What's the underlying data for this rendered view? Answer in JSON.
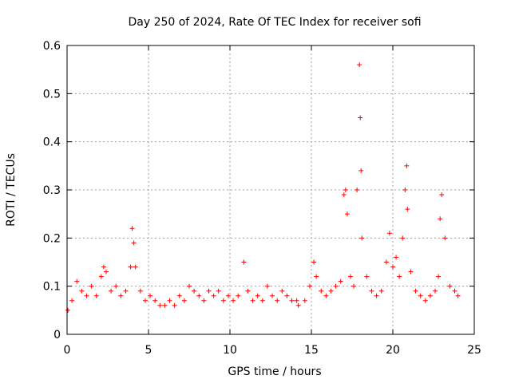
{
  "chart_data": {
    "type": "scatter",
    "title": "Day 250 of 2024, Rate Of TEC Index for receiver sofi",
    "xlabel": "GPS time / hours",
    "ylabel": "ROTI / TECUs",
    "xlim": [
      0,
      25
    ],
    "ylim": [
      0,
      0.6
    ],
    "xticks": [
      "0",
      "5",
      "10",
      "15",
      "20",
      "25"
    ],
    "yticks": [
      "0",
      "0.1",
      "0.2",
      "0.3",
      "0.4",
      "0.5",
      "0.6"
    ],
    "grid": true,
    "marker": "+",
    "color": "#ff0000",
    "series": [
      {
        "name": "ROTI",
        "x": [
          0.05,
          0.3,
          0.6,
          0.9,
          1.2,
          1.5,
          1.8,
          2.1,
          2.25,
          2.4,
          2.7,
          3.0,
          3.3,
          3.6,
          3.9,
          4.0,
          4.1,
          4.2,
          4.5,
          4.8,
          5.1,
          5.4,
          5.7,
          6.0,
          6.3,
          6.6,
          6.9,
          7.2,
          7.5,
          7.8,
          8.1,
          8.4,
          8.7,
          9.0,
          9.3,
          9.6,
          9.9,
          10.2,
          10.5,
          10.85,
          11.1,
          11.4,
          11.7,
          12.0,
          12.3,
          12.6,
          12.9,
          13.2,
          13.5,
          13.8,
          14.1,
          14.2,
          14.6,
          14.9,
          15.15,
          15.3,
          15.6,
          15.9,
          16.2,
          16.5,
          16.8,
          17.0,
          17.1,
          17.2,
          17.4,
          17.6,
          17.8,
          17.95,
          18.0,
          18.05,
          18.1,
          18.4,
          18.7,
          19.0,
          19.3,
          19.6,
          19.8,
          20.0,
          20.2,
          20.4,
          20.6,
          20.75,
          20.85,
          20.9,
          21.1,
          21.4,
          21.7,
          22.0,
          22.3,
          22.6,
          22.8,
          22.9,
          23.0,
          23.2,
          23.5,
          23.8,
          24.0
        ],
        "y": [
          0.05,
          0.07,
          0.11,
          0.09,
          0.08,
          0.1,
          0.08,
          0.12,
          0.14,
          0.13,
          0.09,
          0.1,
          0.08,
          0.09,
          0.14,
          0.22,
          0.19,
          0.14,
          0.09,
          0.07,
          0.08,
          0.07,
          0.06,
          0.06,
          0.07,
          0.06,
          0.08,
          0.07,
          0.1,
          0.09,
          0.08,
          0.07,
          0.09,
          0.08,
          0.09,
          0.07,
          0.08,
          0.07,
          0.08,
          0.15,
          0.09,
          0.07,
          0.08,
          0.07,
          0.1,
          0.08,
          0.07,
          0.09,
          0.08,
          0.07,
          0.07,
          0.06,
          0.07,
          0.1,
          0.15,
          0.12,
          0.09,
          0.08,
          0.09,
          0.1,
          0.11,
          0.29,
          0.3,
          0.25,
          0.12,
          0.1,
          0.3,
          0.56,
          0.45,
          0.34,
          0.2,
          0.12,
          0.09,
          0.08,
          0.09,
          0.15,
          0.21,
          0.14,
          0.16,
          0.12,
          0.2,
          0.3,
          0.35,
          0.26,
          0.13,
          0.09,
          0.08,
          0.07,
          0.08,
          0.09,
          0.12,
          0.24,
          0.29,
          0.2,
          0.1,
          0.09,
          0.08
        ]
      }
    ]
  }
}
